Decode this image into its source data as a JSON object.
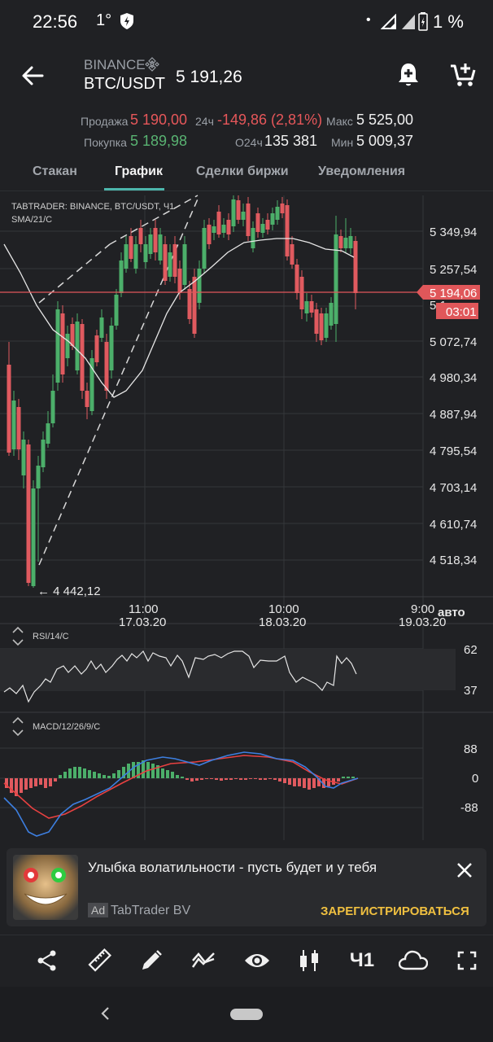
{
  "status_bar": {
    "time": "22:56",
    "temp": "1°",
    "battery": "1 %"
  },
  "header": {
    "exchange": "BINANCE",
    "pair": "BTC/USDT",
    "last_price": "5 191,26"
  },
  "stats": {
    "sell_label": "Продажа",
    "sell_value": "5 190,00",
    "buy_label": "Покупка",
    "buy_value": "5 189,98",
    "change_label": "24ч",
    "change_value": "-149,86 (2,81%)",
    "volume_label": "О24ч",
    "volume_value": "135 381",
    "max_label": "Макс",
    "max_value": "5 525,00",
    "min_label": "Мин",
    "min_value": "5 009,37"
  },
  "tabs": [
    {
      "label": "Стакан"
    },
    {
      "label": "График",
      "active": true
    },
    {
      "label": "Сделки биржи"
    },
    {
      "label": "Уведомления"
    }
  ],
  "chart": {
    "caption": "TABTRADER: BINANCE, BTC/USDT, Ч1",
    "sma_label": "SMA/21/C",
    "y_ticks": [
      "5 349,94",
      "5 257,54",
      "5 072,74",
      "4 980,34",
      "4 887,94",
      "4 795,54",
      "4 703,14",
      "4 610,74",
      "4 518,34"
    ],
    "current_price": "5 194,06",
    "countdown": "03:01",
    "min_marker": "← 4 442,12",
    "x_times": [
      "11:00",
      "10:00",
      "9:00"
    ],
    "x_dates": [
      "17.03.20",
      "18.03.20",
      "19.03.20"
    ],
    "auto_label": "авто",
    "rsi": {
      "label": "RSI/14/C",
      "levels": [
        "62",
        "37"
      ]
    },
    "macd": {
      "label": "MACD/12/26/9/C",
      "levels": [
        "88",
        "0",
        "-88"
      ]
    },
    "colors": {
      "up": "#4caf6a",
      "down": "#e05a5f",
      "price_line": "#e0575a"
    }
  },
  "ad": {
    "title": "Улыбка волатильности - пусть будет и у тебя",
    "badge": "Ad",
    "advertiser": "TabTrader BV",
    "cta": "ЗАРЕГИСТРИРОВАТЬСЯ"
  },
  "toolbar": {
    "timeframe": "Ч1"
  },
  "icons": [
    "back-arrow-icon",
    "binance-icon",
    "add-alert-icon",
    "add-cart-icon",
    "share-icon",
    "ruler-icon",
    "pencil-icon",
    "indicator-icon",
    "eye-icon",
    "candles-icon",
    "cloud-icon",
    "fullscreen-icon",
    "close-icon",
    "nav-back-icon",
    "home-pill-icon"
  ]
}
